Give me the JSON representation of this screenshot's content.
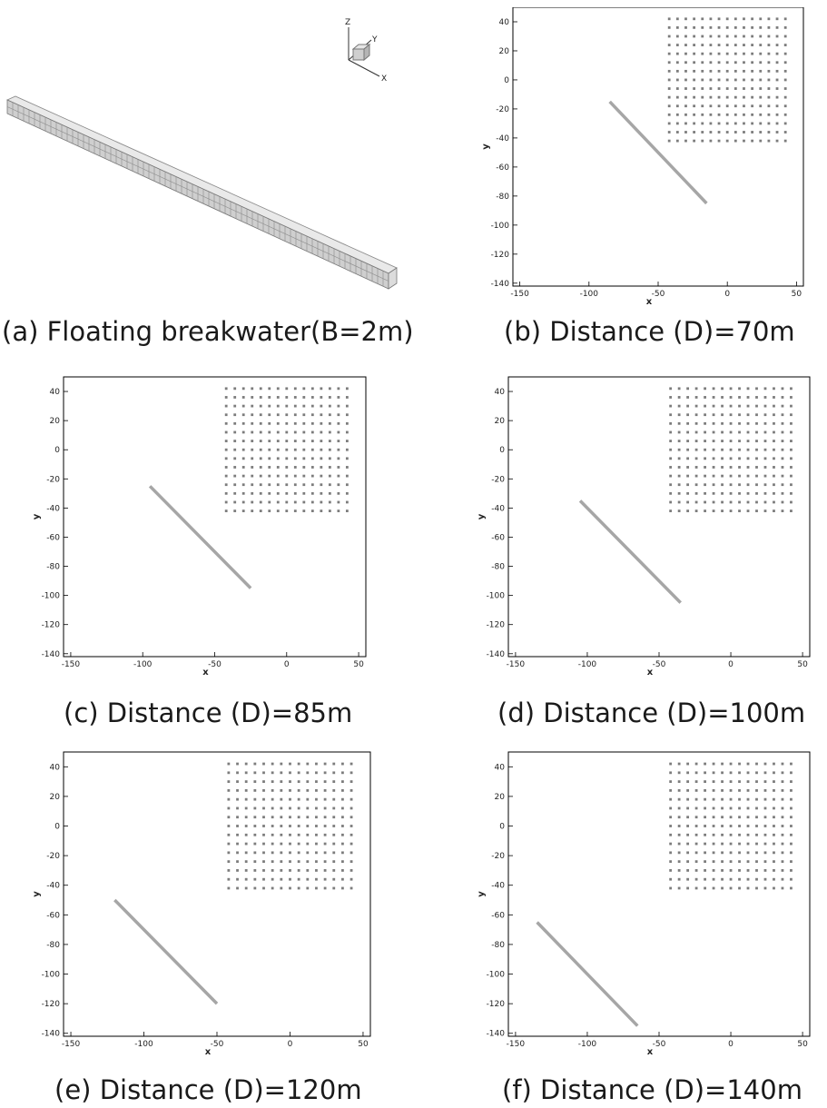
{
  "figure": {
    "panel_a": {
      "caption": "(a) Floating breakwater(B=2m)",
      "axes_triad": {
        "z": "Z",
        "y": "Y",
        "x": "X"
      }
    },
    "plots": [
      {
        "id": "b",
        "caption": "(b) Distance (D)=70m",
        "breakwater": {
          "x1": -85,
          "y1": -15,
          "x2": -15,
          "y2": -85
        }
      },
      {
        "id": "c",
        "caption": "(c) Distance (D)=85m",
        "breakwater": {
          "x1": -95,
          "y1": -25,
          "x2": -25,
          "y2": -95
        }
      },
      {
        "id": "d",
        "caption": "(d) Distance (D)=100m",
        "breakwater": {
          "x1": -105,
          "y1": -35,
          "x2": -35,
          "y2": -105
        }
      },
      {
        "id": "e",
        "caption": "(e) Distance (D)=120m",
        "breakwater": {
          "x1": -120,
          "y1": -50,
          "x2": -50,
          "y2": -120
        }
      },
      {
        "id": "f",
        "caption": "(f) Distance (D)=140m",
        "breakwater": {
          "x1": -135,
          "y1": -65,
          "x2": -65,
          "y2": -135
        }
      }
    ]
  },
  "chart_data": {
    "type": "scatter",
    "xlabel": "x",
    "ylabel": "y",
    "xlim": [
      -155,
      55
    ],
    "ylim": [
      -142,
      50
    ],
    "xticks": [
      -150,
      -100,
      -50,
      0,
      50
    ],
    "yticks": [
      40,
      20,
      0,
      -20,
      -40,
      -60,
      -80,
      -100,
      -120,
      -140
    ],
    "xtick_labels": [
      "-150",
      "-100",
      "-50",
      "0",
      "50"
    ],
    "ytick_labels": [
      "40",
      "20",
      "0",
      "-20",
      "-40",
      "-60",
      "-80",
      "-100",
      "-120",
      "-140"
    ],
    "grid": false,
    "point_grid": {
      "x_start": -42,
      "x_end": 42,
      "x_count": 15,
      "y_start": 42,
      "y_end": -42,
      "y_count": 15
    },
    "colors": {
      "breakwater": "#a6a6a6",
      "points": "#7c7c7c",
      "frame": "#000000"
    }
  }
}
